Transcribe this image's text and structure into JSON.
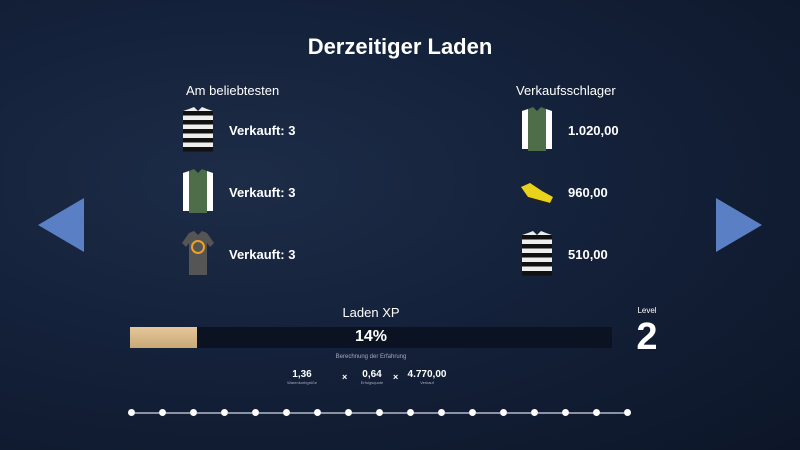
{
  "title": "Derzeitiger Laden",
  "popular": {
    "header": "Am beliebtesten",
    "items": [
      {
        "item": "black-white-striped-shirt",
        "label": "Verkauft: 3"
      },
      {
        "item": "green-shirt",
        "label": "Verkauft: 3"
      },
      {
        "item": "grey-logo-tshirt",
        "label": "Verkauft: 3"
      }
    ]
  },
  "bestsellers": {
    "header": "Verkaufsschlager",
    "items": [
      {
        "item": "green-shirt",
        "label": "1.020,00"
      },
      {
        "item": "yellow-boot",
        "label": "960,00"
      },
      {
        "item": "black-white-striped-shirt",
        "label": "510,00"
      }
    ]
  },
  "xp": {
    "title": "Laden XP",
    "percent_label": "14%",
    "progress": 14,
    "calc_label": "Berechnung der Erfahrung",
    "factors": [
      {
        "value": "1,36",
        "label": "Warenkorbgröße"
      },
      {
        "value": "0,64",
        "label": "Erfolgsquote"
      },
      {
        "value": "4.770,00",
        "label": "Verkauf"
      }
    ],
    "operator": "×"
  },
  "level": {
    "label": "Level",
    "value": "2"
  },
  "pagination": {
    "pages": 17
  },
  "colors": {
    "arrow": "#5b7fc4",
    "bar_fill": "#d8b98a"
  }
}
